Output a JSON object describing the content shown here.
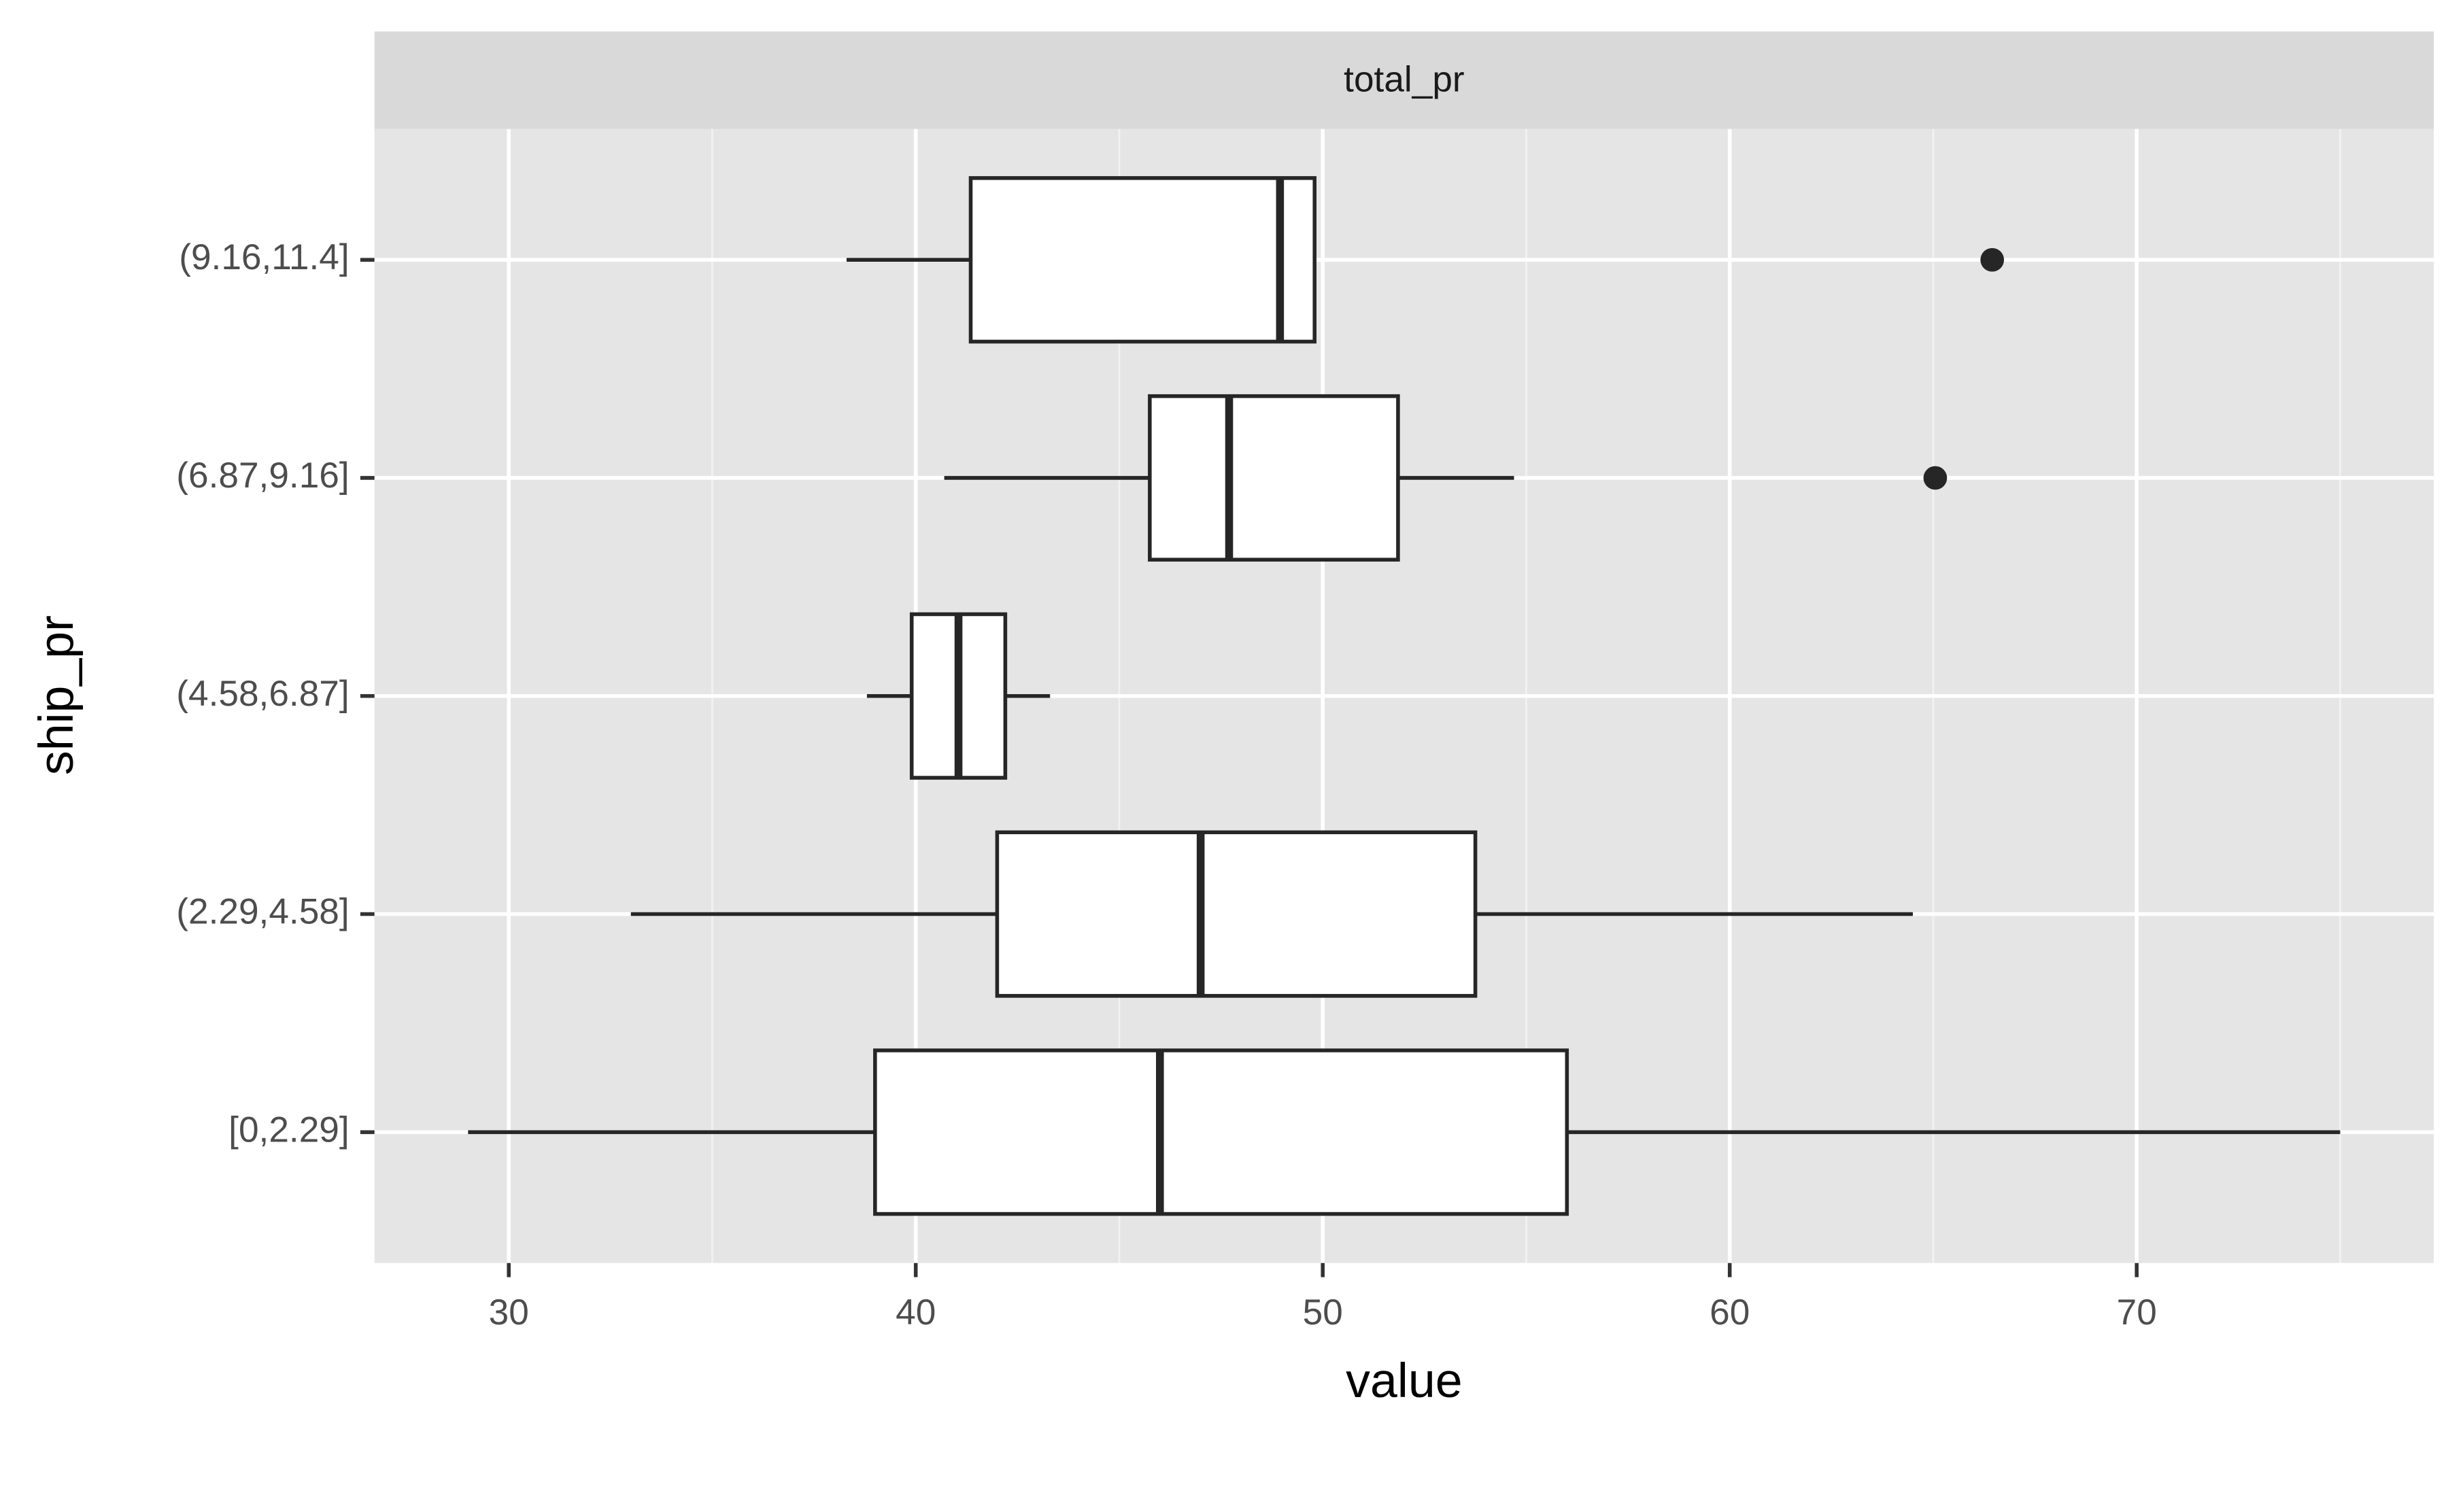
{
  "chart_data": {
    "type": "boxplot",
    "strip": "total_pr",
    "xlabel": "value",
    "ylabel": "ship_pr",
    "categories": [
      "[0,2.29]",
      "(2.29,4.58]",
      "(4.58,6.87]",
      "(6.87,9.16]",
      "(9.16,11.4]"
    ],
    "min": [
      29,
      33,
      38.8,
      40.7,
      38.3
    ],
    "q1": [
      39,
      42,
      39.9,
      45.75,
      41.35
    ],
    "median": [
      46,
      47,
      41.05,
      47.7,
      48.95
    ],
    "q3": [
      56,
      53.75,
      42.2,
      51.85,
      49.8
    ],
    "max": [
      75,
      64.5,
      43.3,
      54.7,
      49.8
    ],
    "outliers": [
      [],
      [],
      [],
      [
        65.05
      ],
      [
        66.45
      ]
    ],
    "xlim": [
      26.7,
      77.3
    ],
    "xticks": [
      30,
      40,
      50,
      60,
      70
    ],
    "minor_xticks": [
      35,
      45,
      55,
      65,
      75
    ],
    "grid": true
  }
}
